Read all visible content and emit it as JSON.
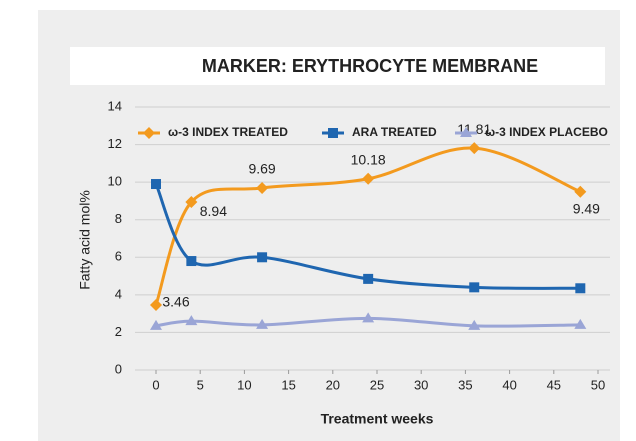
{
  "chart_data": {
    "type": "line",
    "title": "MARKER: ERYTHROCYTE MEMBRANE",
    "x_label": "Treatment weeks",
    "y_label": "Fatty acid mol%",
    "x": [
      0,
      4,
      12,
      24,
      36,
      48
    ],
    "series": [
      {
        "name": "ω-3 INDEX TREATED",
        "color": "#f39a1e",
        "marker": "diamond",
        "data_labels": true,
        "values": [
          3.46,
          8.94,
          9.69,
          10.18,
          11.81,
          9.49
        ]
      },
      {
        "name": "ARA TREATED",
        "color": "#1f66b0",
        "marker": "square",
        "values": [
          9.9,
          5.8,
          6.0,
          4.85,
          4.4,
          4.35
        ]
      },
      {
        "name": "ω-3 INDEX PLACEBO",
        "color": "#9aa5d6",
        "marker": "triangle",
        "values": [
          2.35,
          2.6,
          2.4,
          2.75,
          2.35,
          2.4
        ]
      }
    ],
    "xlim": [
      0,
      50
    ],
    "xticks": [
      0,
      5,
      10,
      15,
      20,
      25,
      30,
      35,
      40,
      45,
      50
    ],
    "ylim": [
      0,
      14
    ],
    "yticks": [
      0,
      2,
      4,
      6,
      8,
      10,
      12,
      14
    ],
    "grid": true,
    "legend": "top"
  }
}
